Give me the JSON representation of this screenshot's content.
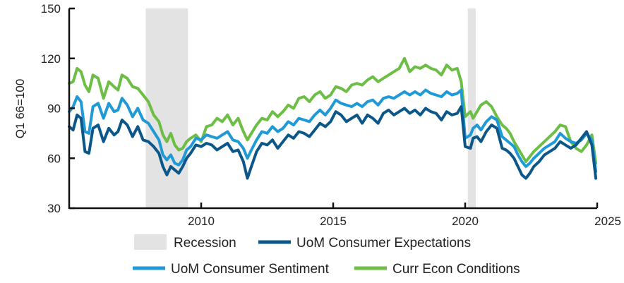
{
  "chart_data": {
    "type": "line",
    "title": "",
    "xlabel": "",
    "ylabel": "Q1 66=100",
    "ylim": [
      30,
      150
    ],
    "xlim": [
      2005,
      2025
    ],
    "y_ticks": [
      30,
      60,
      90,
      120,
      150
    ],
    "x_ticks": [
      2010,
      2015,
      2020,
      2025
    ],
    "grid": false,
    "legend_position": "bottom",
    "colors": {
      "recession": "#e3e3e3",
      "expectations": "#0b5789",
      "sentiment": "#1f9ad6",
      "conditions": "#6cbe45",
      "axis": "#111111"
    },
    "recessions": [
      {
        "start": 2007.9,
        "end": 2009.5
      },
      {
        "start": 2020.1,
        "end": 2020.4
      }
    ],
    "legend": {
      "recession": "Recession",
      "expectations": "UoM Consumer Expectations",
      "sentiment": "UoM Consumer Sentiment",
      "conditions": "Curr Econ Conditions"
    },
    "series": [
      {
        "key": "conditions",
        "name": "Curr Econ Conditions",
        "x": [
          2005.0,
          2005.15,
          2005.3,
          2005.45,
          2005.6,
          2005.75,
          2005.9,
          2006.1,
          2006.3,
          2006.5,
          2006.7,
          2006.85,
          2007.0,
          2007.2,
          2007.4,
          2007.6,
          2007.8,
          2008.0,
          2008.2,
          2008.4,
          2008.55,
          2008.7,
          2008.85,
          2009.0,
          2009.15,
          2009.3,
          2009.45,
          2009.6,
          2009.8,
          2010.0,
          2010.2,
          2010.4,
          2010.6,
          2010.8,
          2011.0,
          2011.2,
          2011.4,
          2011.6,
          2011.75,
          2011.9,
          2012.1,
          2012.3,
          2012.5,
          2012.7,
          2012.9,
          2013.1,
          2013.3,
          2013.5,
          2013.7,
          2013.9,
          2014.1,
          2014.3,
          2014.5,
          2014.7,
          2014.9,
          2015.1,
          2015.3,
          2015.5,
          2015.7,
          2015.9,
          2016.1,
          2016.3,
          2016.5,
          2016.7,
          2016.9,
          2017.1,
          2017.3,
          2017.5,
          2017.7,
          2017.9,
          2018.1,
          2018.3,
          2018.5,
          2018.7,
          2018.9,
          2019.1,
          2019.3,
          2019.5,
          2019.7,
          2019.85,
          2020.0,
          2020.2,
          2020.3,
          2020.45,
          2020.6,
          2020.8,
          2021.0,
          2021.2,
          2021.4,
          2021.55,
          2021.7,
          2021.85,
          2022.0,
          2022.15,
          2022.3,
          2022.45,
          2022.6,
          2022.8,
          2023.0,
          2023.2,
          2023.4,
          2023.6,
          2023.8,
          2024.0,
          2024.2,
          2024.4,
          2024.6,
          2024.8,
          2024.95
        ],
        "values": [
          105,
          106,
          114,
          112,
          104,
          100,
          110,
          108,
          96,
          106,
          103,
          101,
          110,
          108,
          103,
          102,
          98,
          94,
          86,
          82,
          74,
          70,
          75,
          68,
          65,
          66,
          70,
          72,
          74,
          70,
          79,
          80,
          84,
          82,
          86,
          80,
          84,
          76,
          71,
          75,
          80,
          84,
          83,
          88,
          85,
          88,
          92,
          90,
          96,
          97,
          94,
          98,
          100,
          96,
          98,
          103,
          102,
          100,
          104,
          105,
          104,
          107,
          109,
          106,
          108,
          110,
          112,
          114,
          120,
          112,
          115,
          114,
          116,
          114,
          113,
          110,
          116,
          113,
          114,
          106,
          85,
          88,
          84,
          88,
          92,
          94,
          91,
          85,
          80,
          78,
          75,
          70,
          66,
          62,
          58,
          61,
          64,
          67,
          70,
          73,
          76,
          80,
          79,
          70,
          66,
          64,
          68,
          74,
          57
        ]
      },
      {
        "key": "sentiment",
        "name": "UoM Consumer Sentiment",
        "x": [
          2005.0,
          2005.15,
          2005.3,
          2005.45,
          2005.6,
          2005.75,
          2005.9,
          2006.1,
          2006.3,
          2006.5,
          2006.7,
          2006.85,
          2007.0,
          2007.2,
          2007.4,
          2007.6,
          2007.8,
          2008.0,
          2008.2,
          2008.4,
          2008.55,
          2008.7,
          2008.85,
          2009.0,
          2009.15,
          2009.3,
          2009.45,
          2009.6,
          2009.8,
          2010.0,
          2010.2,
          2010.4,
          2010.6,
          2010.8,
          2011.0,
          2011.2,
          2011.4,
          2011.6,
          2011.75,
          2011.9,
          2012.1,
          2012.3,
          2012.5,
          2012.7,
          2012.9,
          2013.1,
          2013.3,
          2013.5,
          2013.7,
          2013.9,
          2014.1,
          2014.3,
          2014.5,
          2014.7,
          2014.9,
          2015.1,
          2015.3,
          2015.5,
          2015.7,
          2015.9,
          2016.1,
          2016.3,
          2016.5,
          2016.7,
          2016.9,
          2017.1,
          2017.3,
          2017.5,
          2017.7,
          2017.9,
          2018.1,
          2018.3,
          2018.5,
          2018.7,
          2018.9,
          2019.1,
          2019.3,
          2019.5,
          2019.7,
          2019.85,
          2020.0,
          2020.2,
          2020.3,
          2020.45,
          2020.6,
          2020.8,
          2021.0,
          2021.2,
          2021.4,
          2021.55,
          2021.7,
          2021.85,
          2022.0,
          2022.15,
          2022.3,
          2022.45,
          2022.6,
          2022.8,
          2023.0,
          2023.2,
          2023.4,
          2023.6,
          2023.8,
          2024.0,
          2024.2,
          2024.4,
          2024.6,
          2024.8,
          2024.95
        ],
        "values": [
          88,
          91,
          97,
          94,
          76,
          75,
          91,
          93,
          84,
          93,
          88,
          89,
          96,
          92,
          85,
          90,
          83,
          81,
          76,
          71,
          62,
          59,
          62,
          57,
          56,
          59,
          65,
          67,
          72,
          71,
          74,
          73,
          72,
          74,
          76,
          71,
          70,
          66,
          60,
          65,
          71,
          76,
          75,
          79,
          76,
          78,
          82,
          80,
          84,
          83,
          82,
          86,
          89,
          86,
          90,
          95,
          93,
          92,
          91,
          93,
          91,
          94,
          95,
          92,
          96,
          97,
          96,
          98,
          100,
          98,
          100,
          98,
          101,
          99,
          98,
          97,
          100,
          98,
          99,
          101,
          72,
          74,
          78,
          80,
          77,
          82,
          85,
          83,
          73,
          71,
          69,
          67,
          62,
          58,
          55,
          57,
          60,
          63,
          66,
          68,
          70,
          75,
          72,
          70,
          69,
          71,
          75,
          71,
          52
        ]
      },
      {
        "key": "expectations",
        "name": "UoM Consumer Expectations",
        "x": [
          2005.0,
          2005.15,
          2005.3,
          2005.45,
          2005.6,
          2005.75,
          2005.9,
          2006.1,
          2006.3,
          2006.5,
          2006.7,
          2006.85,
          2007.0,
          2007.2,
          2007.4,
          2007.6,
          2007.8,
          2008.0,
          2008.2,
          2008.4,
          2008.55,
          2008.7,
          2008.85,
          2009.0,
          2009.15,
          2009.3,
          2009.45,
          2009.6,
          2009.8,
          2010.0,
          2010.2,
          2010.4,
          2010.6,
          2010.8,
          2011.0,
          2011.2,
          2011.4,
          2011.6,
          2011.75,
          2011.9,
          2012.1,
          2012.3,
          2012.5,
          2012.7,
          2012.9,
          2013.1,
          2013.3,
          2013.5,
          2013.7,
          2013.9,
          2014.1,
          2014.3,
          2014.5,
          2014.7,
          2014.9,
          2015.1,
          2015.3,
          2015.5,
          2015.7,
          2015.9,
          2016.1,
          2016.3,
          2016.5,
          2016.7,
          2016.9,
          2017.1,
          2017.3,
          2017.5,
          2017.7,
          2017.9,
          2018.1,
          2018.3,
          2018.5,
          2018.7,
          2018.9,
          2019.1,
          2019.3,
          2019.5,
          2019.7,
          2019.85,
          2020.0,
          2020.2,
          2020.3,
          2020.45,
          2020.6,
          2020.8,
          2021.0,
          2021.2,
          2021.4,
          2021.55,
          2021.7,
          2021.85,
          2022.0,
          2022.15,
          2022.3,
          2022.45,
          2022.6,
          2022.8,
          2023.0,
          2023.2,
          2023.4,
          2023.6,
          2023.8,
          2024.0,
          2024.2,
          2024.4,
          2024.6,
          2024.8,
          2024.95
        ],
        "values": [
          79,
          77,
          86,
          84,
          64,
          63,
          78,
          80,
          70,
          78,
          74,
          76,
          83,
          80,
          73,
          79,
          71,
          70,
          67,
          63,
          55,
          50,
          55,
          53,
          51,
          55,
          60,
          63,
          68,
          67,
          69,
          68,
          65,
          67,
          69,
          64,
          65,
          58,
          48,
          55,
          64,
          69,
          68,
          71,
          66,
          70,
          74,
          72,
          76,
          75,
          73,
          77,
          81,
          79,
          82,
          88,
          86,
          82,
          84,
          86,
          81,
          86,
          84,
          81,
          87,
          89,
          86,
          88,
          90,
          87,
          89,
          86,
          90,
          88,
          87,
          83,
          88,
          86,
          87,
          91,
          67,
          66,
          72,
          73,
          70,
          76,
          80,
          78,
          66,
          65,
          63,
          60,
          55,
          50,
          48,
          51,
          55,
          58,
          62,
          64,
          66,
          70,
          68,
          66,
          68,
          72,
          76,
          68,
          48
        ]
      }
    ]
  }
}
